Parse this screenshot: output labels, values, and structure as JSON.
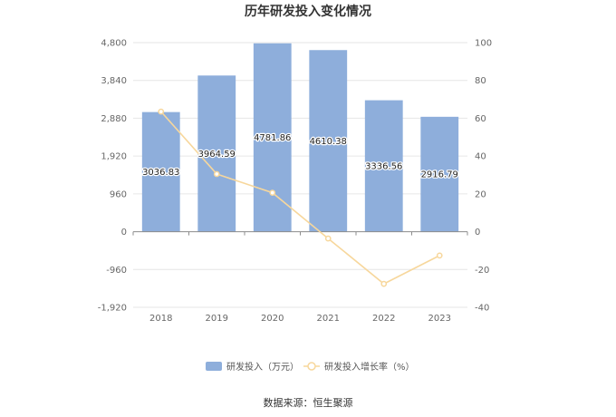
{
  "chart_data": {
    "type": "bar",
    "title": "历年研发投入变化情况",
    "categories": [
      "2018",
      "2019",
      "2020",
      "2021",
      "2022",
      "2023"
    ],
    "series": [
      {
        "name": "研发投入（万元）",
        "type": "bar",
        "axis": "left",
        "color": "#8eaedb",
        "values": [
          3036.83,
          3964.59,
          4781.86,
          4610.38,
          3336.56,
          2916.79
        ],
        "value_labels": [
          "3036.83",
          "3964.59",
          "4781.86",
          "4610.38",
          "3336.56",
          "2916.79"
        ]
      },
      {
        "name": "研发投入增长率（%）",
        "type": "line",
        "axis": "right",
        "color": "#f7d79c",
        "values": [
          63.5,
          30.5,
          20.6,
          -3.6,
          -27.6,
          -12.6
        ]
      }
    ],
    "left_axis": {
      "ylim": [
        -1920,
        4800
      ],
      "ticks": [
        4800,
        3840,
        2880,
        1920,
        960,
        0,
        -960,
        -1920
      ],
      "tick_labels": [
        "4,800",
        "3,840",
        "2,880",
        "1,920",
        "960",
        "0",
        "-960",
        "-1,920"
      ]
    },
    "right_axis": {
      "ylim": [
        -40,
        100
      ],
      "ticks": [
        100,
        80,
        60,
        40,
        20,
        0,
        -20,
        -40
      ],
      "tick_labels": [
        "100",
        "80",
        "60",
        "40",
        "20",
        "0",
        "-20",
        "-40"
      ]
    },
    "grid": true,
    "legend_position": "bottom-center"
  },
  "source_text": "数据来源：恒生聚源"
}
